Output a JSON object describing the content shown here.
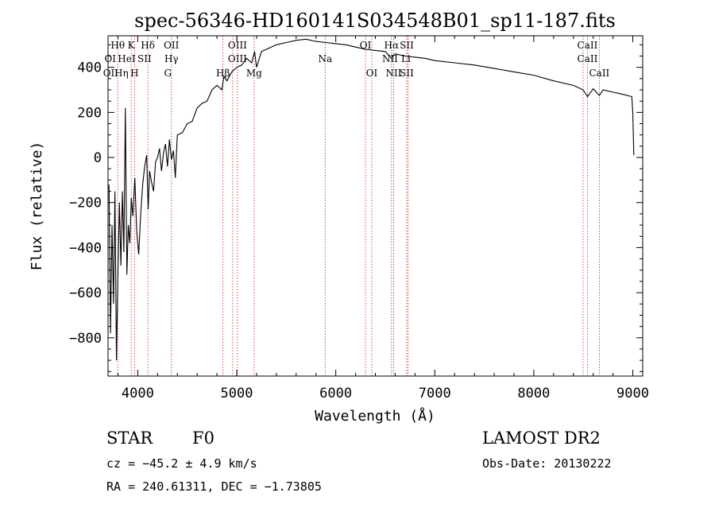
{
  "chart_data": {
    "type": "line",
    "title": "spec-56346-HD160141S034548B01_sp11-187.fits",
    "xlabel": "Wavelength (Å)",
    "ylabel": "Flux (relative)",
    "xlim": [
      3700,
      9100
    ],
    "ylim": [
      -970,
      540
    ],
    "xticks": [
      4000,
      5000,
      6000,
      7000,
      8000,
      9000
    ],
    "yticks": [
      -800,
      -600,
      -400,
      -200,
      0,
      200,
      400
    ],
    "grid": false,
    "series": [
      {
        "points": [
          [
            3710,
            -120
          ],
          [
            3725,
            -780
          ],
          [
            3740,
            -300
          ],
          [
            3755,
            -650
          ],
          [
            3770,
            -150
          ],
          [
            3785,
            -900
          ],
          [
            3800,
            -500
          ],
          [
            3815,
            -200
          ],
          [
            3830,
            -480
          ],
          [
            3845,
            -150
          ],
          [
            3860,
            -420
          ],
          [
            3875,
            220
          ],
          [
            3890,
            -520
          ],
          [
            3905,
            -300
          ],
          [
            3920,
            -380
          ],
          [
            3935,
            -180
          ],
          [
            3950,
            -260
          ],
          [
            3970,
            -90
          ],
          [
            3990,
            -330
          ],
          [
            4010,
            -430
          ],
          [
            4030,
            -250
          ],
          [
            4050,
            -120
          ],
          [
            4070,
            -40
          ],
          [
            4090,
            10
          ],
          [
            4105,
            -230
          ],
          [
            4120,
            -60
          ],
          [
            4140,
            -110
          ],
          [
            4160,
            -150
          ],
          [
            4180,
            -20
          ],
          [
            4200,
            0
          ],
          [
            4220,
            40
          ],
          [
            4240,
            -60
          ],
          [
            4260,
            20
          ],
          [
            4280,
            60
          ],
          [
            4300,
            -40
          ],
          [
            4320,
            80
          ],
          [
            4340,
            -10
          ],
          [
            4360,
            30
          ],
          [
            4380,
            -90
          ],
          [
            4400,
            100
          ],
          [
            4450,
            110
          ],
          [
            4500,
            150
          ],
          [
            4550,
            160
          ],
          [
            4600,
            220
          ],
          [
            4650,
            240
          ],
          [
            4700,
            250
          ],
          [
            4750,
            300
          ],
          [
            4800,
            320
          ],
          [
            4850,
            300
          ],
          [
            4870,
            360
          ],
          [
            4900,
            340
          ],
          [
            4950,
            380
          ],
          [
            5000,
            400
          ],
          [
            5050,
            410
          ],
          [
            5100,
            440
          ],
          [
            5150,
            420
          ],
          [
            5180,
            470
          ],
          [
            5200,
            400
          ],
          [
            5250,
            470
          ],
          [
            5300,
            480
          ],
          [
            5400,
            500
          ],
          [
            5500,
            510
          ],
          [
            5600,
            520
          ],
          [
            5700,
            525
          ],
          [
            5800,
            515
          ],
          [
            5900,
            510
          ],
          [
            6000,
            505
          ],
          [
            6100,
            500
          ],
          [
            6200,
            490
          ],
          [
            6300,
            480
          ],
          [
            6400,
            475
          ],
          [
            6500,
            470
          ],
          [
            6563,
            440
          ],
          [
            6600,
            460
          ],
          [
            6700,
            450
          ],
          [
            6800,
            445
          ],
          [
            6900,
            440
          ],
          [
            7000,
            430
          ],
          [
            7200,
            420
          ],
          [
            7400,
            410
          ],
          [
            7600,
            395
          ],
          [
            7800,
            380
          ],
          [
            8000,
            365
          ],
          [
            8200,
            340
          ],
          [
            8400,
            320
          ],
          [
            8498,
            300
          ],
          [
            8542,
            270
          ],
          [
            8600,
            305
          ],
          [
            8662,
            275
          ],
          [
            8700,
            300
          ],
          [
            8800,
            290
          ],
          [
            8900,
            280
          ],
          [
            8990,
            270
          ],
          [
            9000,
            200
          ],
          [
            9010,
            10
          ]
        ]
      }
    ],
    "lines": [
      {
        "label": "Hθ",
        "x": 3798
      },
      {
        "label": "CaII K",
        "x": 3934
      },
      {
        "label": "CaII H",
        "x": 3968
      },
      {
        "label": "Hδ",
        "x": 4102
      },
      {
        "label": "Hγ",
        "x": 4341
      },
      {
        "label": "Hβ",
        "x": 4861
      },
      {
        "label": "OIII",
        "x": 4959
      },
      {
        "label": "OIII",
        "x": 5007
      },
      {
        "label": "Mg",
        "x": 5175
      },
      {
        "label": "Na",
        "x": 5893
      },
      {
        "label": "OI",
        "x": 6300
      },
      {
        "label": "OI",
        "x": 6364
      },
      {
        "label": "Hα",
        "x": 6563
      },
      {
        "label": "NII",
        "x": 6584
      },
      {
        "label": "SII",
        "x": 6717
      },
      {
        "label": "SII",
        "x": 6731
      },
      {
        "label": "CaII",
        "x": 8498
      },
      {
        "label": "CaII",
        "x": 8542
      },
      {
        "label": "CaII",
        "x": 8662
      }
    ],
    "line_labels": [
      {
        "text": "Hθ",
        "x": 3798,
        "row": 0
      },
      {
        "text": "K",
        "x": 3934,
        "row": 0
      },
      {
        "text": "Hδ",
        "x": 4102,
        "row": 0
      },
      {
        "text": "OII",
        "x": 4340,
        "row": 0
      },
      {
        "text": "OIII",
        "x": 5007,
        "row": 0
      },
      {
        "text": "OI",
        "x": 6300,
        "row": 0
      },
      {
        "text": "Hα",
        "x": 6563,
        "row": 0
      },
      {
        "text": "SII",
        "x": 6717,
        "row": 0
      },
      {
        "text": "CaII",
        "x": 8542,
        "row": 0
      },
      {
        "text": "OI",
        "x": 3722,
        "row": 1
      },
      {
        "text": "HeI",
        "x": 3888,
        "row": 1
      },
      {
        "text": "SII",
        "x": 4068,
        "row": 1
      },
      {
        "text": "Hγ",
        "x": 4340,
        "row": 1
      },
      {
        "text": "OIII",
        "x": 5007,
        "row": 1
      },
      {
        "text": "Na",
        "x": 5893,
        "row": 1
      },
      {
        "text": "NII",
        "x": 6548,
        "row": 1
      },
      {
        "text": "Li",
        "x": 6708,
        "row": 1
      },
      {
        "text": "CaII",
        "x": 8542,
        "row": 1
      },
      {
        "text": "OII",
        "x": 3727,
        "row": 2
      },
      {
        "text": "Hη",
        "x": 3835,
        "row": 2
      },
      {
        "text": "H",
        "x": 3968,
        "row": 2
      },
      {
        "text": "G",
        "x": 4304,
        "row": 2
      },
      {
        "text": "Hβ",
        "x": 4861,
        "row": 2
      },
      {
        "text": "Mg",
        "x": 5175,
        "row": 2
      },
      {
        "text": "OI",
        "x": 6364,
        "row": 2
      },
      {
        "text": "NII",
        "x": 6584,
        "row": 2
      },
      {
        "text": "SII",
        "x": 6717,
        "row": 2
      },
      {
        "text": "CaII",
        "x": 8662,
        "row": 2
      }
    ]
  },
  "info": {
    "class_label": "STAR",
    "subclass": "F0",
    "survey": "LAMOST DR2",
    "velocity": "cz = −45.2 ± 4.9 km/s",
    "obs_date": "Obs-Date: 20130222",
    "coords": "RA = 240.61311, DEC =  −1.73805"
  }
}
